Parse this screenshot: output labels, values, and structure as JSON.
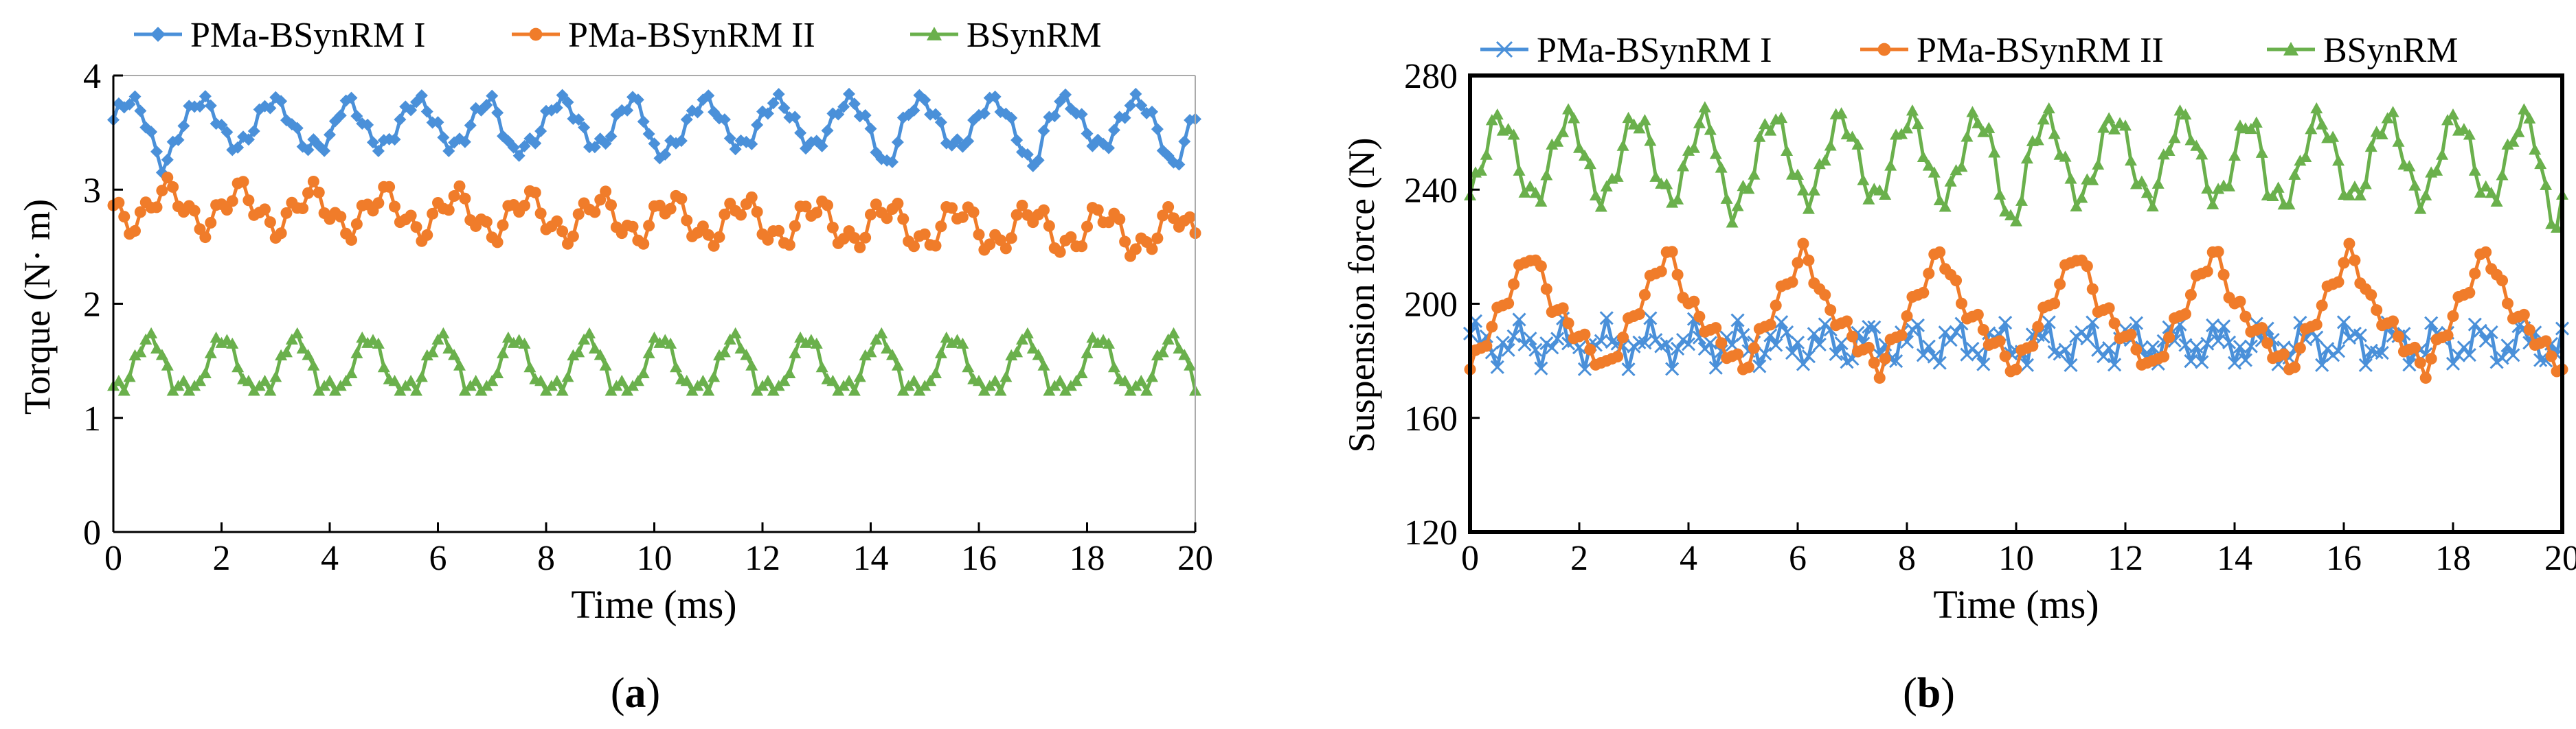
{
  "colors": {
    "pma1": "#4a90d9",
    "pma2": "#f07c2a",
    "bsyn": "#6ab04c",
    "axis": "#000000",
    "grid": "#cfcfcf"
  },
  "chart_data": [
    {
      "id": "a",
      "type": "line",
      "panel_label": "a",
      "xlabel": "Time (ms)",
      "ylabel": "Torque (N· m)",
      "xlim": [
        0,
        20
      ],
      "ylim": [
        0,
        4
      ],
      "xticks": [
        0,
        2,
        4,
        6,
        8,
        10,
        12,
        14,
        16,
        18,
        20
      ],
      "yticks": [
        0,
        1,
        2,
        3,
        4
      ],
      "frame": "open-box",
      "legend": "top",
      "series": [
        {
          "name": "PMa-BSynRM I",
          "color_key": "pma1",
          "marker": "diamond",
          "gen": {
            "type": "wave",
            "mean": 3.58,
            "amp": 0.2,
            "period": 1.33,
            "phase": 0.3,
            "ripple": 0.06,
            "ripple_period": 0.33,
            "dips": [
              0.9,
              4.0,
              7.3,
              10.0,
              14.3,
              17.0,
              19.6
            ],
            "dip_depth": 0.18,
            "dt": 0.1,
            "t_end": 20
          }
        },
        {
          "name": "PMa-BSynRM II",
          "color_key": "pma2",
          "marker": "circle",
          "gen": {
            "type": "wave",
            "mean": 2.86,
            "amp": 0.16,
            "period": 1.33,
            "phase": 1.0,
            "ripple": 0.1,
            "ripple_period": 0.45,
            "trend": -0.012,
            "dt": 0.1,
            "t_end": 20
          }
        },
        {
          "name": "BSynRM",
          "color_key": "bsyn",
          "marker": "triangle",
          "gen": {
            "type": "humps",
            "base": 1.28,
            "peak": 1.7,
            "period": 1.35,
            "phase": 0.25,
            "ripple": 0.05,
            "ripple_period": 0.3,
            "dt": 0.1,
            "t_end": 20
          }
        }
      ]
    },
    {
      "id": "b",
      "type": "line",
      "panel_label": "b",
      "xlabel": "Time (ms)",
      "ylabel": "Suspension force (N)",
      "xlim": [
        0,
        20
      ],
      "ylim": [
        120,
        280
      ],
      "xticks": [
        0,
        2,
        4,
        6,
        8,
        10,
        12,
        14,
        16,
        18,
        20
      ],
      "yticks": [
        120,
        160,
        200,
        240,
        280
      ],
      "frame": "full-box",
      "legend": "top",
      "series": [
        {
          "name": "PMa-BSynRM I",
          "color_key": "pma1",
          "marker": "x",
          "gen": {
            "type": "wave",
            "mean": 186,
            "amp": 5,
            "period": 0.8,
            "phase": 0.1,
            "ripple": 4,
            "ripple_period": 0.27,
            "dt": 0.1,
            "t_end": 20
          }
        },
        {
          "name": "PMa-BSynRM II",
          "color_key": "pma2",
          "marker": "circle",
          "gen": {
            "type": "saw",
            "low": 177,
            "high": 219,
            "period": 2.5,
            "phase": 0.0,
            "ripple": 3,
            "ripple_period": 0.4,
            "dt": 0.1,
            "t_end": 20
          }
        },
        {
          "name": "BSynRM",
          "color_key": "bsyn",
          "marker": "triangle",
          "gen": {
            "type": "wave",
            "mean": 251,
            "amp": 14,
            "period": 1.25,
            "phase": 0.55,
            "ripple": 4,
            "ripple_period": 0.35,
            "dips": [
              4.7,
              9.9,
              14.6,
              19.8
            ],
            "dip_depth": 10,
            "dt": 0.1,
            "t_end": 20
          }
        }
      ]
    }
  ]
}
